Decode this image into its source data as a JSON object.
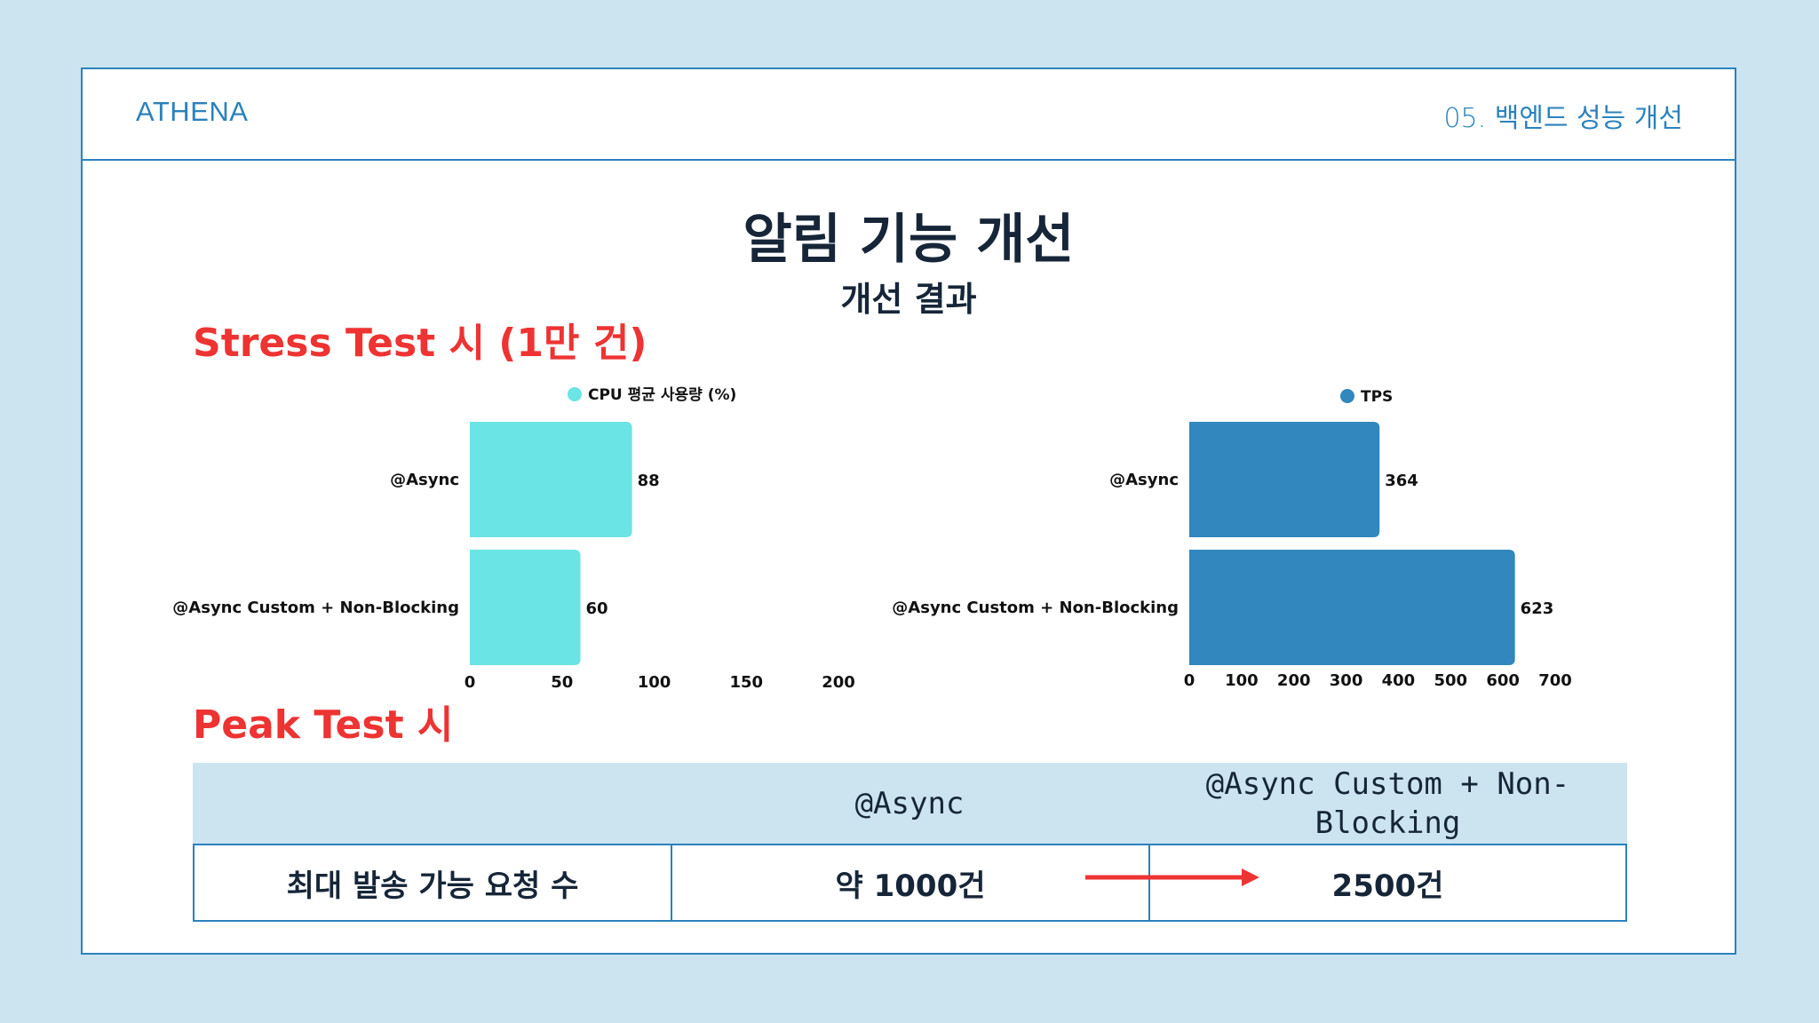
{
  "header": {
    "brand": "ATHENA",
    "section": "05. 백엔드 성능 개선"
  },
  "title": "알림 기능 개선",
  "subtitle": "개선 결과",
  "stress_heading": "Stress Test 시 (1만 건)",
  "peak_heading": "Peak Test 시",
  "colors": {
    "cpu": "#6ae4e4",
    "tps": "#3187be",
    "accent": "#ee3333",
    "frame": "#2b82bd"
  },
  "chart_data": [
    {
      "type": "bar",
      "orientation": "horizontal",
      "categories": [
        "@Async",
        "@Async Custom + Non-Blocking"
      ],
      "series": [
        {
          "name": "CPU 평균 사용량 (%)",
          "values": [
            88,
            60
          ]
        }
      ],
      "xlim": [
        0,
        200
      ],
      "xticks": [
        "0",
        "50",
        "100",
        "150",
        "200"
      ],
      "legend": "top",
      "grid": false
    },
    {
      "type": "bar",
      "orientation": "horizontal",
      "categories": [
        "@Async",
        "@Async Custom + Non-Blocking"
      ],
      "series": [
        {
          "name": "TPS",
          "values": [
            364,
            623
          ]
        }
      ],
      "xlim": [
        0,
        700
      ],
      "xticks": [
        "0",
        "100",
        "200",
        "300",
        "400",
        "500",
        "600",
        "700"
      ],
      "legend": "top",
      "grid": false
    }
  ],
  "table": {
    "headers": [
      "",
      "@Async",
      "@Async Custom + Non-Blocking"
    ],
    "row": {
      "label": "최대 발송 가능 요청 수",
      "async": "약 1000건",
      "custom": "2500건"
    }
  }
}
